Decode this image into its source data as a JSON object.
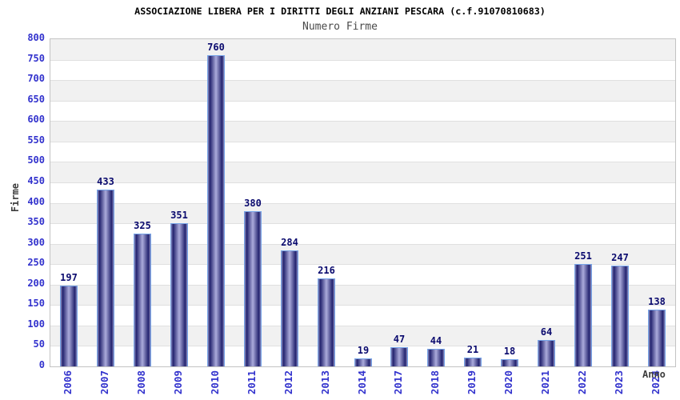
{
  "header": {
    "title": "ASSOCIAZIONE LIBERA PER I DIRITTI DEGLI ANZIANI PESCARA (c.f.91070810683)",
    "subtitle": "Numero Firme"
  },
  "chart_data": {
    "type": "bar",
    "title": "ASSOCIAZIONE LIBERA PER I DIRITTI DEGLI ANZIANI PESCARA (c.f.91070810683)",
    "subtitle": "Numero Firme",
    "categories": [
      "2006",
      "2007",
      "2008",
      "2009",
      "2010",
      "2011",
      "2012",
      "2013",
      "2014",
      "2017",
      "2018",
      "2019",
      "2020",
      "2021",
      "2022",
      "2023",
      "2024"
    ],
    "values": [
      197,
      433,
      325,
      351,
      760,
      380,
      284,
      216,
      19,
      47,
      44,
      21,
      18,
      64,
      251,
      247,
      138
    ],
    "xlabel": "Anno",
    "ylabel": "Firme",
    "ylim": [
      0,
      800
    ],
    "ytick_step": 50,
    "grid": "horizontal-bands-alternating",
    "legend": "none",
    "colors": {
      "bar_edge": "#22226e",
      "bar_center": "#ababdb",
      "bar_rim_highlight": "#8a8abd",
      "bar_border": "#76a4e8",
      "tick_label": "#3232cd",
      "value_label": "#0a0a6e",
      "band_fill": "#f1f1f1",
      "gridline": "#e0e0e0",
      "plot_border": "#c3c3c3",
      "axis_title": "#3d3d3d",
      "title_color": "#000000",
      "subtitle_color": "#4a4a4a",
      "background": "#ffffff"
    }
  }
}
